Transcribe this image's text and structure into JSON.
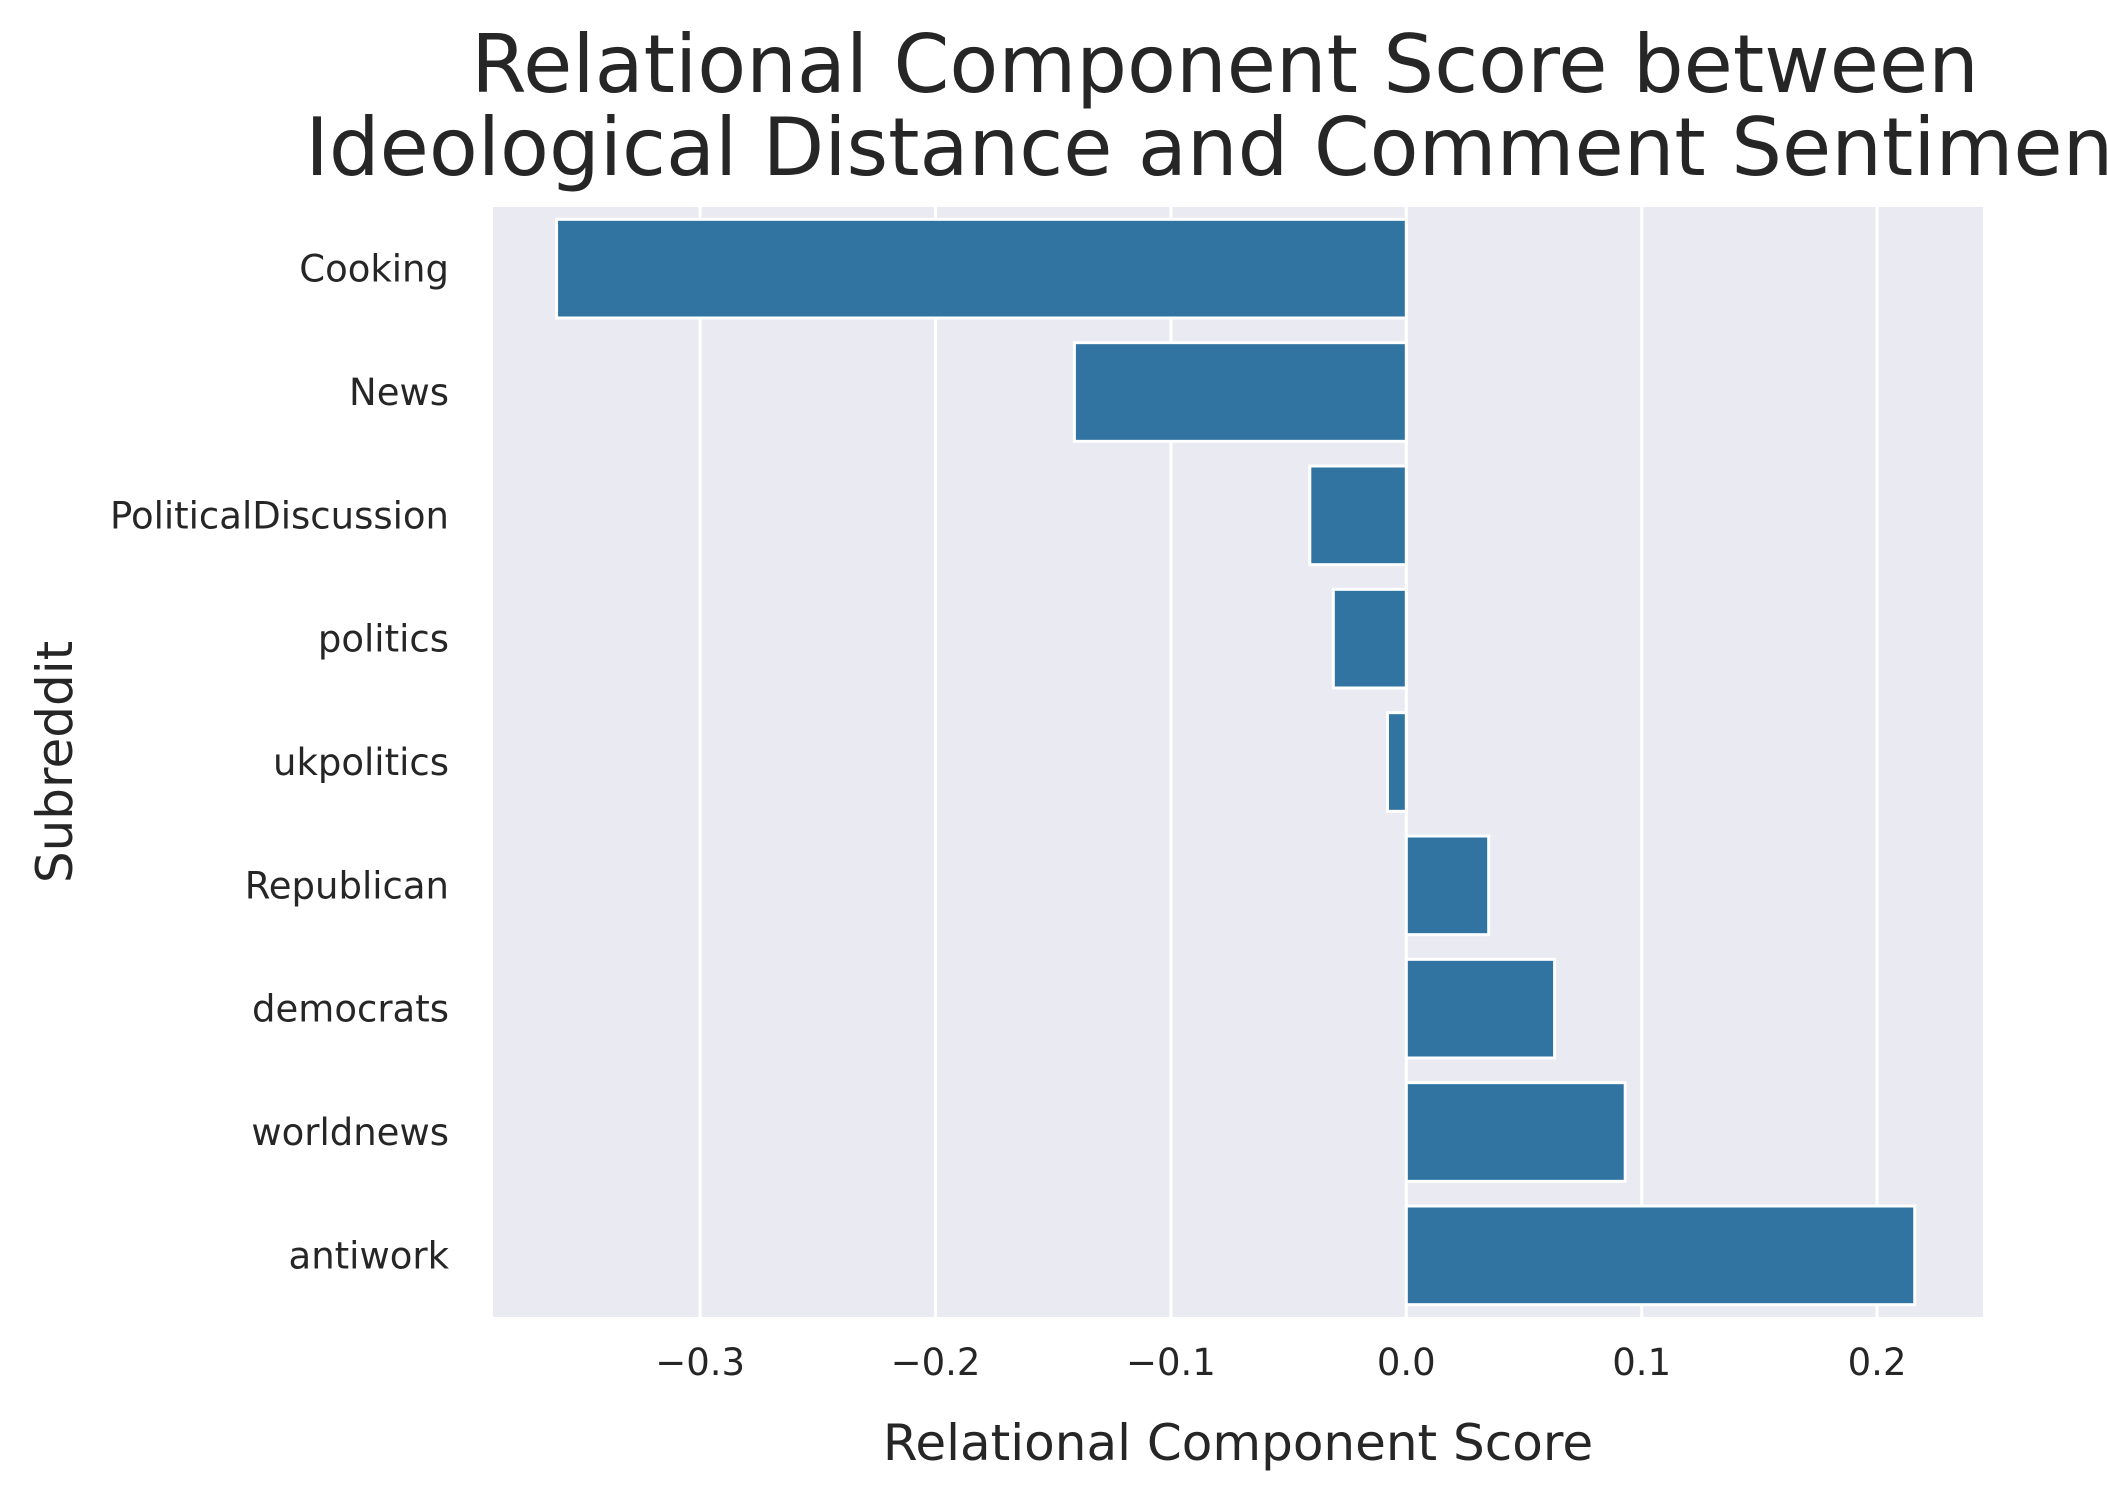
{
  "chart_data": {
    "type": "bar",
    "orientation": "horizontal",
    "title": [
      "Relational Component Score between",
      "Ideological Distance and Comment Sentiment"
    ],
    "xlabel": "Relational Component Score",
    "ylabel": "Subreddit",
    "categories": [
      "Cooking",
      "News",
      "PoliticalDiscussion",
      "politics",
      "ukpolitics",
      "Republican",
      "democrats",
      "worldnews",
      "antiwork"
    ],
    "values": [
      -0.361,
      -0.141,
      -0.041,
      -0.031,
      -0.008,
      0.035,
      0.063,
      0.093,
      0.216
    ],
    "xlim": [
      -0.388,
      0.245
    ],
    "xticks": [
      -0.3,
      -0.2,
      -0.1,
      0.0,
      0.1,
      0.2
    ],
    "xtick_labels": [
      "−0.3",
      "−0.2",
      "−0.1",
      "0.0",
      "0.1",
      "0.2"
    ],
    "grid": true,
    "colors": {
      "bar": "#3274a1",
      "plot_background": "#eaeaf2",
      "grid": "#ffffff",
      "text": "#262626"
    }
  }
}
